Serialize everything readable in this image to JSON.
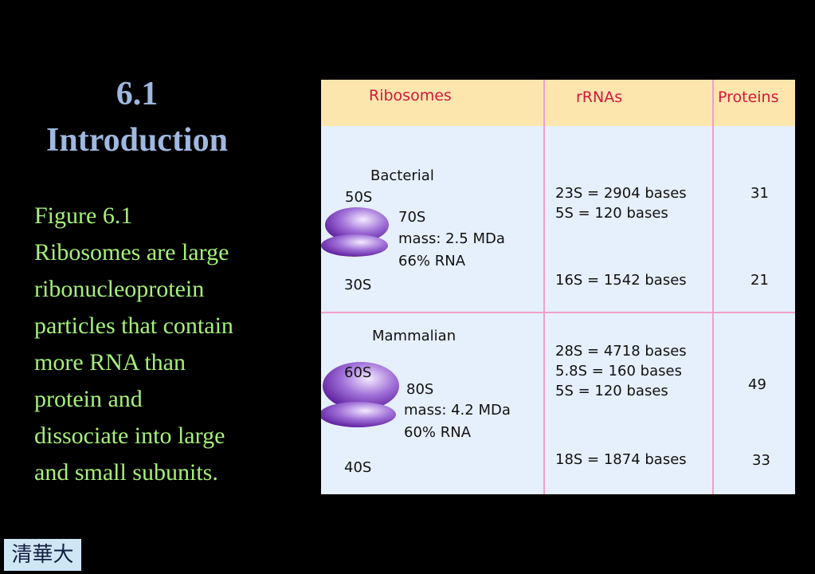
{
  "title": {
    "number": "6.1",
    "text": "Introduction"
  },
  "caption": {
    "lines": [
      "Figure 6.1",
      "Ribosomes are large",
      "ribonucleoprotein",
      "particles that contain",
      "more RNA than",
      "protein and",
      "dissociate into large",
      "and small subunits."
    ]
  },
  "table": {
    "headers": [
      "Ribosomes",
      "rRNAs",
      "Proteins"
    ],
    "rows": [
      {
        "kind": "Bacterial",
        "large": "50S",
        "small": "30S",
        "whole": "70S",
        "mass": "mass:  2.5 MDa",
        "rna": "66% RNA",
        "large_rrnas": [
          "23S = 2904 bases",
          "5S = 120 bases"
        ],
        "small_rrnas": [
          "16S = 1542 bases"
        ],
        "large_proteins": 31,
        "small_proteins": 21
      },
      {
        "kind": "Mammalian",
        "large": "60S",
        "small": "40S",
        "whole": "80S",
        "mass": "mass:  4.2 MDa",
        "rna": "60% RNA",
        "large_rrnas": [
          "28S = 4718 bases",
          "5.8S = 160 bases",
          "5S = 120 bases"
        ],
        "small_rrnas": [
          "18S = 1874 bases"
        ],
        "large_proteins": 49,
        "small_proteins": 33
      }
    ]
  },
  "logo": "清華大學"
}
